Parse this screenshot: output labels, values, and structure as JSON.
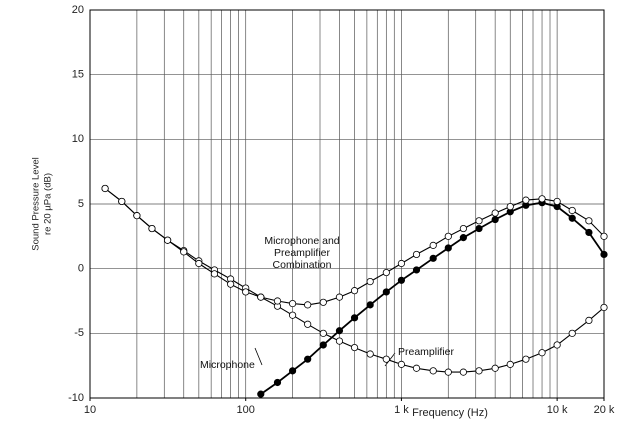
{
  "chart_data": {
    "type": "line",
    "xlabel": "Frequency (Hz)",
    "ylabel": [
      "Sound Pressure Level",
      "re 20 µPa (dB)"
    ],
    "xscale": "log",
    "x": [
      12.5,
      16,
      20,
      25,
      31.5,
      40,
      50,
      63,
      80,
      100,
      125,
      160,
      200,
      250,
      315,
      400,
      500,
      630,
      800,
      1000,
      1250,
      1600,
      2000,
      2500,
      3150,
      4000,
      5000,
      6300,
      8000,
      10000,
      12500,
      16000,
      20000
    ],
    "series": [
      {
        "name": "Microphone",
        "color": "#000000",
        "marker_fill": "#000000",
        "values": [
          null,
          null,
          null,
          null,
          null,
          null,
          null,
          null,
          null,
          null,
          -9.7,
          -8.8,
          -7.9,
          -7.0,
          -5.9,
          -4.8,
          -3.8,
          -2.8,
          -1.8,
          -0.9,
          -0.1,
          0.8,
          1.6,
          2.4,
          3.1,
          3.8,
          4.4,
          4.9,
          5.1,
          4.8,
          3.9,
          2.8,
          1.1
        ]
      },
      {
        "name": "Preamplifier",
        "color": "#000000",
        "marker_fill": "#ffffff",
        "values": [
          6.2,
          5.2,
          4.1,
          3.1,
          2.2,
          1.4,
          0.6,
          -0.1,
          -0.8,
          -1.5,
          -2.2,
          -2.9,
          -3.6,
          -4.3,
          -5.0,
          -5.6,
          -6.1,
          -6.6,
          -7.0,
          -7.4,
          -7.7,
          -7.9,
          -8.0,
          -8.0,
          -7.9,
          -7.7,
          -7.4,
          -7.0,
          -6.5,
          -5.9,
          -5.0,
          -4.0,
          -3.0
        ]
      },
      {
        "name": "Microphone and Preamplifier Combination",
        "color": "#000000",
        "marker_fill": "#ffffff",
        "values": [
          6.2,
          5.2,
          4.1,
          3.1,
          2.2,
          1.3,
          0.4,
          -0.4,
          -1.2,
          -1.8,
          -2.2,
          -2.5,
          -2.7,
          -2.8,
          -2.6,
          -2.2,
          -1.7,
          -1.0,
          -0.3,
          0.4,
          1.1,
          1.8,
          2.5,
          3.1,
          3.7,
          4.3,
          4.8,
          5.3,
          5.4,
          5.2,
          4.5,
          3.7,
          2.5
        ]
      }
    ],
    "xlim": [
      10,
      20000
    ],
    "xticks": [
      10,
      100,
      {
        "value": 1000,
        "label": "1 k"
      },
      {
        "value": 10000,
        "label": "10 k"
      },
      {
        "value": 20000,
        "label": "20 k"
      }
    ],
    "xgrid": [
      20,
      30,
      40,
      50,
      60,
      70,
      80,
      90,
      100,
      200,
      300,
      400,
      500,
      600,
      700,
      800,
      900,
      1000,
      2000,
      3000,
      4000,
      5000,
      6000,
      7000,
      8000,
      9000,
      10000
    ],
    "ylim": [
      -10,
      20
    ],
    "yticks": [
      -10,
      -5,
      0,
      5,
      10,
      15,
      20
    ],
    "grid": true
  }
}
